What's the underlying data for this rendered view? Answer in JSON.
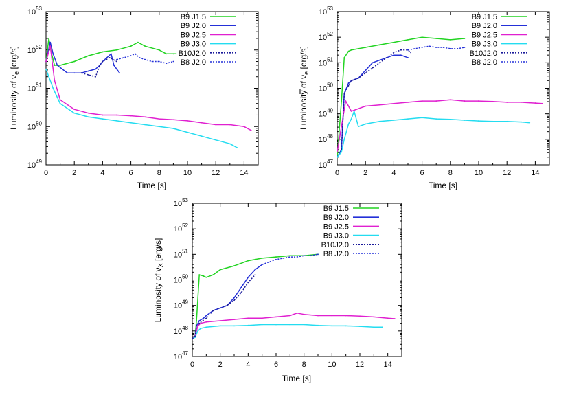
{
  "legend_entries": [
    {
      "name": "B9  J1.5",
      "color": "#22d422",
      "dashed": false
    },
    {
      "name": "B9  J2.0",
      "color": "#2430d8",
      "dashed": false
    },
    {
      "name": "B9  J2.5",
      "color": "#e020d0",
      "dashed": false
    },
    {
      "name": "B9  J3.0",
      "color": "#24dcf0",
      "dashed": false
    },
    {
      "name": "B10J2.0",
      "color": "#1a1a9a",
      "dashed": true
    },
    {
      "name": "B8  J2.0",
      "color": "#2430d8",
      "dashed": true
    }
  ],
  "chart_data": [
    {
      "type": "line",
      "title": "",
      "xlabel": "Time [s]",
      "ylabel_text": "Luminosity of ν",
      "ylabel_sub": "e",
      "ylabel_unit": " [erg/s]",
      "ylabel_bar": false,
      "xlim": [
        0,
        15
      ],
      "ylim_exp": [
        49,
        53
      ],
      "yscale": "log",
      "x_ticks": [
        "0",
        "2",
        "4",
        "6",
        "8",
        "10",
        "12",
        "14"
      ],
      "y_ticks": [
        "49",
        "50",
        "51",
        "52",
        "53"
      ],
      "series": [
        {
          "name": "B9  J1.5",
          "x": [
            0,
            0.2,
            0.4,
            0.6,
            1,
            2,
            3,
            4,
            5,
            6,
            6.5,
            7,
            8,
            8.5,
            9,
            9.2
          ],
          "log10y": [
            51.7,
            52.3,
            51.9,
            51.6,
            51.6,
            51.7,
            51.85,
            51.95,
            52.0,
            52.1,
            52.2,
            52.1,
            52.0,
            51.9,
            51.9,
            51.9
          ]
        },
        {
          "name": "B9  J2.0",
          "x": [
            0,
            0.3,
            0.5,
            0.8,
            1.5,
            2,
            2.5,
            3,
            3.5,
            3.8,
            4,
            4.3,
            4.6,
            4.8,
            5,
            5.2
          ],
          "log10y": [
            51.7,
            52.2,
            51.9,
            51.6,
            51.4,
            51.4,
            51.4,
            51.45,
            51.5,
            51.6,
            51.7,
            51.8,
            51.9,
            51.6,
            51.5,
            51.4
          ]
        },
        {
          "name": "B9  J2.5",
          "x": [
            0,
            0.3,
            0.6,
            1,
            2,
            3,
            4,
            5,
            6,
            7,
            8,
            9,
            10,
            11,
            12,
            13,
            14,
            14.5
          ],
          "log10y": [
            51.7,
            52.1,
            51.2,
            50.7,
            50.45,
            50.35,
            50.3,
            50.3,
            50.28,
            50.25,
            50.2,
            50.18,
            50.15,
            50.1,
            50.05,
            50.05,
            50.0,
            49.9
          ]
        },
        {
          "name": "B9  J3.0",
          "x": [
            0,
            0.2,
            0.5,
            1,
            2,
            3,
            4,
            5,
            6,
            7,
            8,
            9,
            10,
            11,
            12,
            13,
            13.5
          ],
          "log10y": [
            51.5,
            51.3,
            51.0,
            50.6,
            50.35,
            50.25,
            50.2,
            50.15,
            50.1,
            50.05,
            50.0,
            49.95,
            49.85,
            49.75,
            49.65,
            49.55,
            49.45
          ]
        },
        {
          "name": "B10J2.0",
          "x": [
            2.5,
            3,
            3.5,
            3.8,
            4,
            4.5,
            5
          ],
          "log10y": [
            51.4,
            51.35,
            51.3,
            51.6,
            51.7,
            51.8,
            51.7
          ]
        },
        {
          "name": "B8  J2.0",
          "x": [
            5,
            5.5,
            6,
            6.3,
            6.6,
            7,
            7.5,
            8,
            8.5,
            9
          ],
          "log10y": [
            51.75,
            51.8,
            51.85,
            51.9,
            51.8,
            51.75,
            51.7,
            51.7,
            51.65,
            51.7
          ]
        }
      ]
    },
    {
      "type": "line",
      "title": "",
      "xlabel": "Time [s]",
      "ylabel_text": "Luminosity of  ν",
      "ylabel_sub": "e",
      "ylabel_unit": " [erg/s]",
      "ylabel_bar": true,
      "xlim": [
        0,
        15
      ],
      "ylim_exp": [
        47,
        53
      ],
      "yscale": "log",
      "x_ticks": [
        "0",
        "2",
        "4",
        "6",
        "8",
        "10",
        "12",
        "14"
      ],
      "y_ticks": [
        "47",
        "48",
        "49",
        "50",
        "51",
        "52",
        "53"
      ],
      "series": [
        {
          "name": "B9  J1.5",
          "x": [
            0,
            0.3,
            0.5,
            0.8,
            1,
            1.5,
            2,
            3,
            4,
            5,
            6,
            7,
            8,
            9
          ],
          "log10y": [
            47.3,
            49.5,
            51.2,
            51.45,
            51.5,
            51.55,
            51.6,
            51.7,
            51.8,
            51.9,
            52.0,
            51.95,
            51.9,
            51.95
          ]
        },
        {
          "name": "B9  J2.0",
          "x": [
            0,
            0.3,
            0.5,
            0.8,
            1,
            1.5,
            2,
            2.5,
            3,
            3.5,
            4,
            4.5,
            5
          ],
          "log10y": [
            47.3,
            47.6,
            49.8,
            50.2,
            50.3,
            50.4,
            50.7,
            51.0,
            51.1,
            51.2,
            51.3,
            51.3,
            51.2
          ]
        },
        {
          "name": "B9  J2.5",
          "x": [
            0,
            0.3,
            0.6,
            1,
            2,
            3,
            4,
            5,
            6,
            7,
            8,
            9,
            10,
            11,
            12,
            13,
            14,
            14.5
          ],
          "log10y": [
            47.5,
            48.5,
            49.5,
            49.1,
            49.3,
            49.35,
            49.4,
            49.45,
            49.5,
            49.5,
            49.55,
            49.5,
            49.5,
            49.48,
            49.45,
            49.45,
            49.42,
            49.4
          ]
        },
        {
          "name": "B9  J3.0",
          "x": [
            0,
            0.3,
            0.5,
            0.8,
            1,
            1.2,
            1.5,
            2,
            3,
            4,
            5,
            6,
            7,
            8,
            9,
            10,
            11,
            12,
            13,
            13.6
          ],
          "log10y": [
            47.3,
            47.5,
            48.0,
            48.6,
            48.8,
            49.1,
            48.5,
            48.6,
            48.7,
            48.75,
            48.8,
            48.85,
            48.8,
            48.78,
            48.75,
            48.72,
            48.7,
            48.7,
            48.68,
            48.65
          ]
        },
        {
          "name": "B10J2.0",
          "x": [
            0.3,
            0.5,
            0.8,
            1,
            1.5,
            2,
            2.5,
            3,
            3.5,
            4,
            4.5,
            5,
            5.2
          ],
          "log10y": [
            47.6,
            49.8,
            50.1,
            50.3,
            50.4,
            50.6,
            50.8,
            51.0,
            51.2,
            51.4,
            51.5,
            51.5,
            51.4
          ]
        },
        {
          "name": "B8  J2.0",
          "x": [
            5,
            5.5,
            6,
            6.5,
            7,
            7.5,
            8,
            8.5,
            9
          ],
          "log10y": [
            51.5,
            51.55,
            51.6,
            51.65,
            51.6,
            51.6,
            51.55,
            51.55,
            51.6
          ]
        }
      ]
    },
    {
      "type": "line",
      "title": "",
      "xlabel": "Time [s]",
      "ylabel_text": "Luminosity of ν",
      "ylabel_sub": "X",
      "ylabel_unit": " [erg/s]",
      "ylabel_bar": false,
      "xlim": [
        0,
        15
      ],
      "ylim_exp": [
        47,
        53
      ],
      "yscale": "log",
      "x_ticks": [
        "0",
        "2",
        "4",
        "6",
        "8",
        "10",
        "12",
        "14"
      ],
      "y_ticks": [
        "47",
        "48",
        "49",
        "50",
        "51",
        "52",
        "53"
      ],
      "series": [
        {
          "name": "B9  J1.5",
          "x": [
            0,
            0.2,
            0.3,
            0.5,
            0.8,
            1,
            1.5,
            2,
            3,
            4,
            5,
            6,
            7,
            8,
            9
          ],
          "log10y": [
            47.7,
            47.8,
            48.4,
            50.2,
            50.15,
            50.1,
            50.2,
            50.4,
            50.55,
            50.75,
            50.85,
            50.9,
            50.95,
            50.95,
            51.0
          ]
        },
        {
          "name": "B9  J2.0",
          "x": [
            0,
            0.2,
            0.3,
            0.5,
            0.8,
            1,
            1.5,
            2,
            2.5,
            3,
            3.5,
            4,
            4.5,
            5
          ],
          "log10y": [
            47.7,
            47.8,
            48.2,
            48.4,
            48.5,
            48.6,
            48.8,
            48.9,
            49.0,
            49.3,
            49.7,
            50.1,
            50.4,
            50.6
          ]
        },
        {
          "name": "B9  J2.5",
          "x": [
            0,
            0.2,
            0.4,
            0.6,
            1,
            2,
            3,
            4,
            5,
            6,
            7,
            7.5,
            8,
            9,
            10,
            11,
            12,
            13,
            14,
            14.5
          ],
          "log10y": [
            47.7,
            47.8,
            48.2,
            48.3,
            48.35,
            48.4,
            48.45,
            48.5,
            48.5,
            48.55,
            48.6,
            48.7,
            48.65,
            48.6,
            48.6,
            48.6,
            48.58,
            48.55,
            48.5,
            48.48
          ]
        },
        {
          "name": "B9  J3.0",
          "x": [
            0,
            0.2,
            0.4,
            0.6,
            1,
            2,
            3,
            4,
            5,
            6,
            7,
            8,
            9,
            10,
            11,
            12,
            13,
            13.6
          ],
          "log10y": [
            47.7,
            47.75,
            48.0,
            48.1,
            48.15,
            48.2,
            48.2,
            48.22,
            48.25,
            48.25,
            48.25,
            48.25,
            48.22,
            48.2,
            48.2,
            48.18,
            48.15,
            48.15
          ]
        },
        {
          "name": "B10J2.0",
          "x": [
            0,
            0.2,
            0.3,
            0.5,
            1,
            1.5,
            2,
            2.5,
            3,
            3.5,
            4,
            4.5
          ],
          "log10y": [
            47.7,
            47.8,
            48.2,
            48.3,
            48.5,
            48.8,
            48.9,
            49.0,
            49.2,
            49.5,
            49.9,
            50.2
          ]
        },
        {
          "name": "B8  J2.0",
          "x": [
            5,
            5.5,
            6,
            6.5,
            7,
            7.5,
            8,
            8.5,
            9
          ],
          "log10y": [
            50.6,
            50.7,
            50.8,
            50.85,
            50.9,
            50.9,
            50.95,
            50.95,
            51.0
          ]
        }
      ]
    }
  ]
}
